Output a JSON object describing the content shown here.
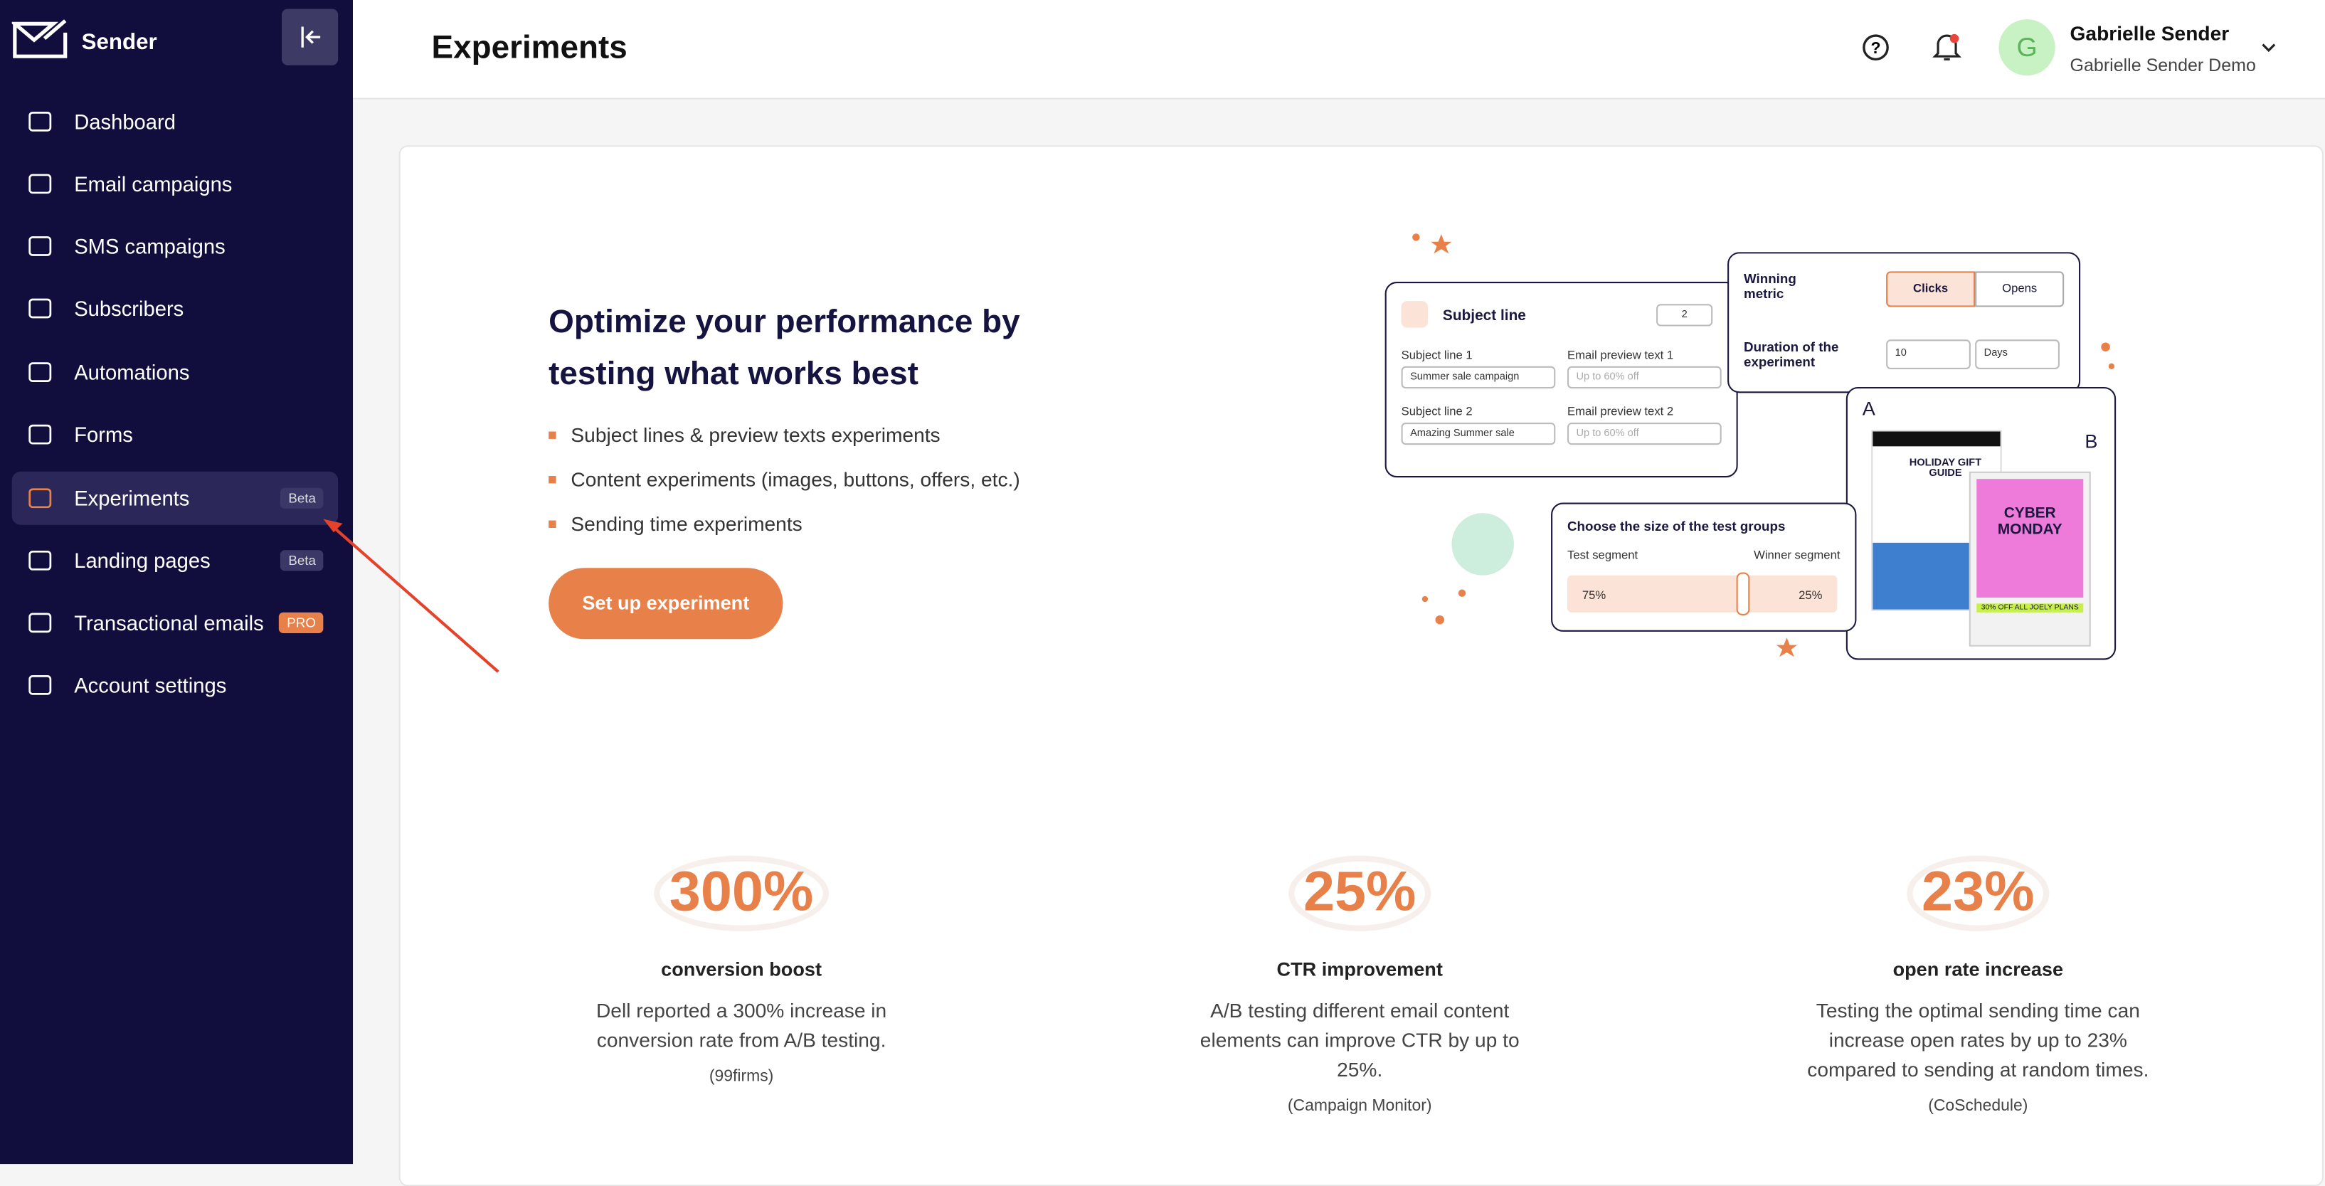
{
  "sidebar": {
    "brand": "Sender",
    "nav": [
      {
        "label": "Dashboard"
      },
      {
        "label": "Email campaigns"
      },
      {
        "label": "SMS campaigns"
      },
      {
        "label": "Subscribers"
      },
      {
        "label": "Automations"
      },
      {
        "label": "Forms"
      },
      {
        "label": "Experiments",
        "badge": "Beta"
      },
      {
        "label": "Landing pages",
        "badge": "Beta"
      },
      {
        "label": "Transactional emails",
        "badge": "PRO"
      },
      {
        "label": "Account settings"
      }
    ]
  },
  "header": {
    "title": "Experiments",
    "user": {
      "initial": "G",
      "name": "Gabrielle Sender",
      "org": "Gabrielle Sender Demo"
    }
  },
  "hero": {
    "heading": "Optimize your performance by testing what works best",
    "bullets": [
      "Subject lines & preview texts experiments",
      "Content experiments (images, buttons, offers, etc.)",
      "Sending time experiments"
    ],
    "button": "Set up experiment"
  },
  "illustration": {
    "subject_card": {
      "title": "Subject line",
      "count": "2",
      "fields": [
        {
          "label": "Subject line 1",
          "value": "Summer sale campaign"
        },
        {
          "label": "Email preview text 1",
          "value": "Up to 60% off"
        },
        {
          "label": "Subject line 2",
          "value": "Amazing Summer sale"
        },
        {
          "label": "Email preview text 2",
          "value": "Up to 60% off"
        }
      ]
    },
    "metric_card": {
      "label": "Winning metric",
      "options": [
        "Clicks",
        "Opens"
      ],
      "duration_label": "Duration of the experiment",
      "duration": "10",
      "unit": "Days"
    },
    "groups_card": {
      "title": "Choose the size of the test groups",
      "left": "Test segment",
      "right": "Winner segment",
      "left_value": "75%",
      "right_value": "25%"
    },
    "variants": {
      "a": "A",
      "b": "B",
      "a_text": "HOLIDAY GIFT GUIDE",
      "b_text": "CYBER MONDAY",
      "b_offer": "30% OFF ALL JOELY PLANS"
    }
  },
  "stats": [
    {
      "value": "300%",
      "label": "conversion boost",
      "description": "Dell reported a 300% increase in conversion rate from A/B testing.",
      "source": "(99firms)"
    },
    {
      "value": "25%",
      "label": "CTR improvement",
      "description": "A/B testing different email content elements can improve CTR by up to 25%.",
      "source": "(Campaign Monitor)"
    },
    {
      "value": "23%",
      "label": "open rate increase",
      "description": "Testing the optimal sending time can increase open rates by up to 23% compared to sending at random times.",
      "source": "(CoSchedule)"
    }
  ]
}
